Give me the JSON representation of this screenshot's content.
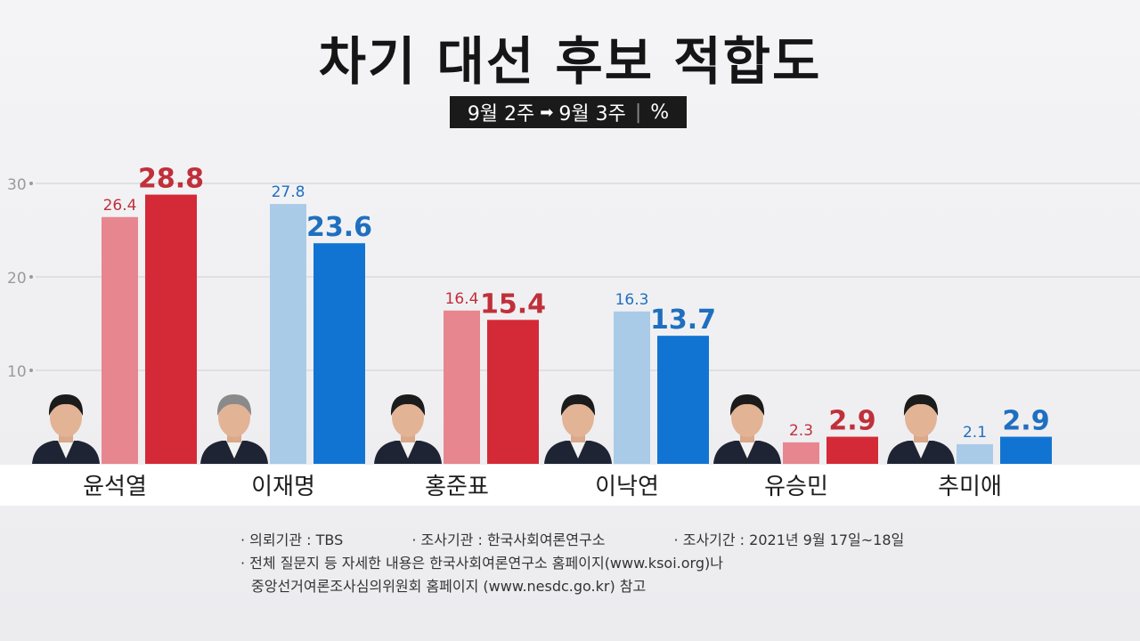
{
  "title": "차기 대선 후보 적합도",
  "subtitle": {
    "from": "9월 2주",
    "to": "9월 3주",
    "unit": "%"
  },
  "colors": {
    "red_prev": "#e8868f",
    "red_curr": "#d42a37",
    "blue_prev": "#a9cbe8",
    "blue_curr": "#1274d2",
    "red_label": "#c0303a",
    "blue_label": "#1f6fc0"
  },
  "chart_data": {
    "type": "bar",
    "categories": [
      "윤석열",
      "이재명",
      "홍준표",
      "이낙연",
      "유승민",
      "추미애"
    ],
    "party": [
      "red",
      "blue",
      "red",
      "blue",
      "red",
      "blue"
    ],
    "series": [
      {
        "name": "9월 2주",
        "values": [
          26.4,
          27.8,
          16.4,
          16.3,
          2.3,
          2.1
        ]
      },
      {
        "name": "9월 3주",
        "values": [
          28.8,
          23.6,
          15.4,
          13.7,
          2.9,
          2.9
        ]
      }
    ],
    "yticks": [
      "10",
      "20",
      "30"
    ],
    "ylim": [
      0,
      30
    ],
    "grid": true
  },
  "footnotes": {
    "client": "의뢰기관 : TBS",
    "pollster": "조사기관 : 한국사회여론연구소",
    "period": "조사기간 : 2021년 9월 17일~18일",
    "note_line1": "전체 질문지 등 자세한 내용은 한국사회여론연구소 홈페이지(www.ksoi.org)나",
    "note_line2": "중앙선거여론조사심의위원회 홈페이지 (www.nesdc.go.kr) 참고"
  }
}
